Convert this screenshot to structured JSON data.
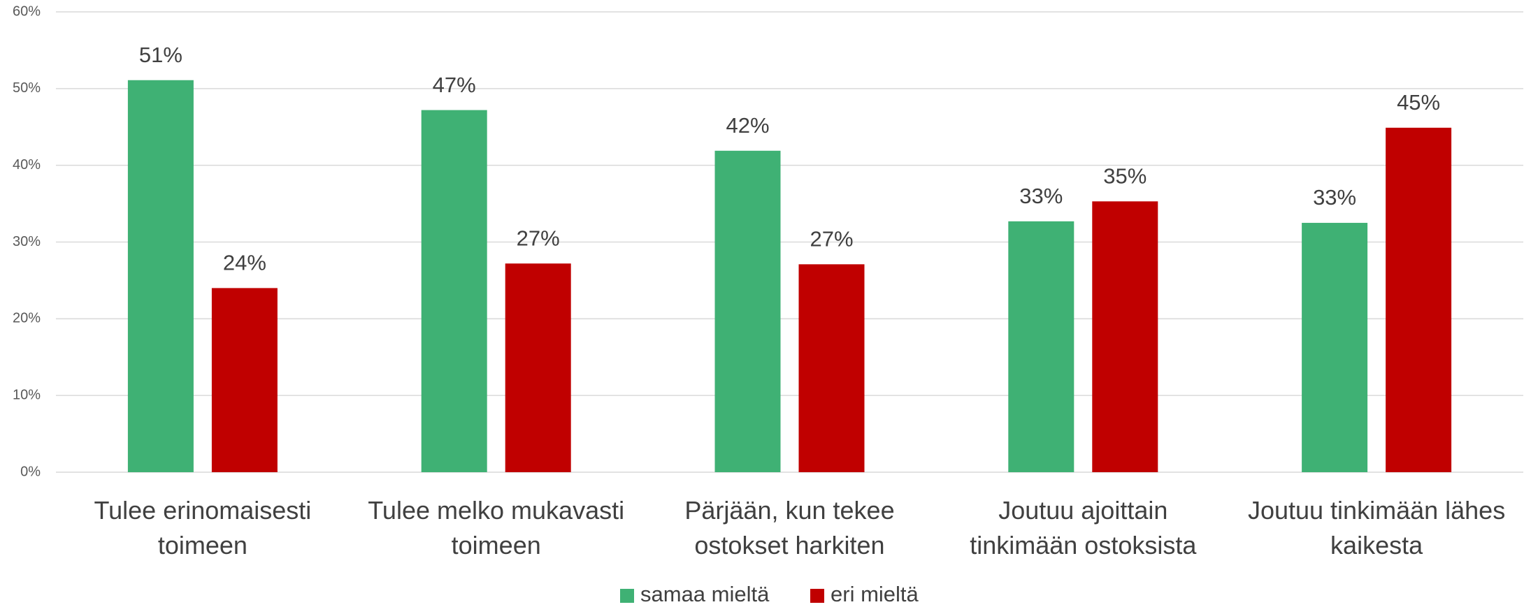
{
  "chart_data": {
    "type": "bar",
    "categories": [
      "Tulee erinomaisesti\ntoimeen",
      "Tulee melko mukavasti\ntoimeen",
      "Pärjään, kun tekee\nostokset harkiten",
      "Joutuu ajoittain\ntinkimään ostoksista",
      "Joutuu tinkimään lähes\nkaikesta"
    ],
    "series": [
      {
        "name": "samaa mieltä",
        "color": "#3fb174",
        "values": [
          51.1,
          47.2,
          41.9,
          32.7,
          32.5
        ],
        "value_labels": [
          "51%",
          "47%",
          "42%",
          "33%",
          "33%"
        ]
      },
      {
        "name": "eri mieltä",
        "color": "#c00000",
        "values": [
          24.0,
          27.2,
          27.1,
          35.3,
          44.9
        ],
        "value_labels": [
          "24%",
          "27%",
          "27%",
          "35%",
          "45%"
        ]
      }
    ],
    "ylim": [
      0,
      60
    ],
    "yticks": [
      {
        "value": 0,
        "label": "0%"
      },
      {
        "value": 10,
        "label": "10%"
      },
      {
        "value": 20,
        "label": "20%"
      },
      {
        "value": 30,
        "label": "30%"
      },
      {
        "value": 40,
        "label": "40%"
      },
      {
        "value": 50,
        "label": "50%"
      },
      {
        "value": 60,
        "label": "60%"
      }
    ],
    "grid": true,
    "legend": "bottom"
  }
}
